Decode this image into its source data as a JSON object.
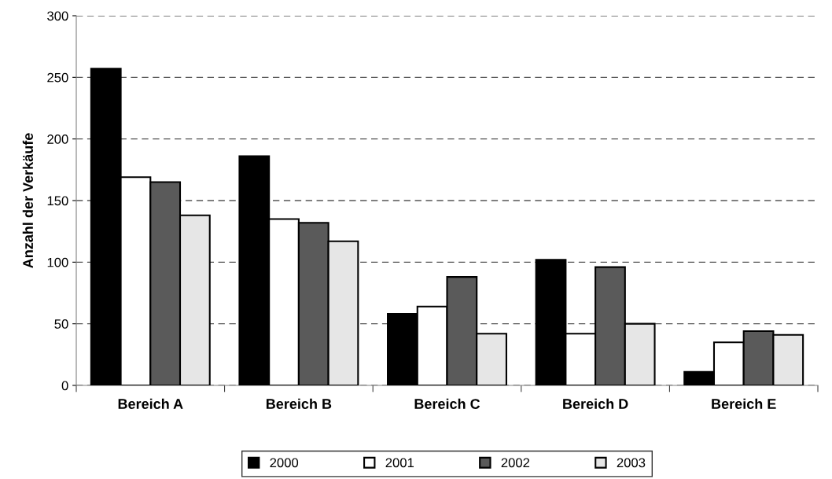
{
  "chart_data": {
    "type": "bar",
    "ylabel": "Anzahl der Verkäufe",
    "categories": [
      "Bereich A",
      "Bereich B",
      "Bereich C",
      "Bereich D",
      "Bereich E"
    ],
    "series": [
      {
        "name": "2000",
        "color": "#000000",
        "values": [
          257,
          186,
          58,
          102,
          11
        ]
      },
      {
        "name": "2001",
        "color": "#ffffff",
        "values": [
          169,
          135,
          64,
          42,
          35
        ]
      },
      {
        "name": "2002",
        "color": "#5a5a5a",
        "values": [
          165,
          132,
          88,
          96,
          44
        ]
      },
      {
        "name": "2003",
        "color": "#e6e6e6",
        "values": [
          138,
          117,
          42,
          50,
          41
        ]
      }
    ],
    "ylim": [
      0,
      300
    ],
    "yticks": [
      0,
      50,
      100,
      150,
      200,
      250,
      300
    ],
    "grid": "y",
    "legend": "bottom"
  }
}
